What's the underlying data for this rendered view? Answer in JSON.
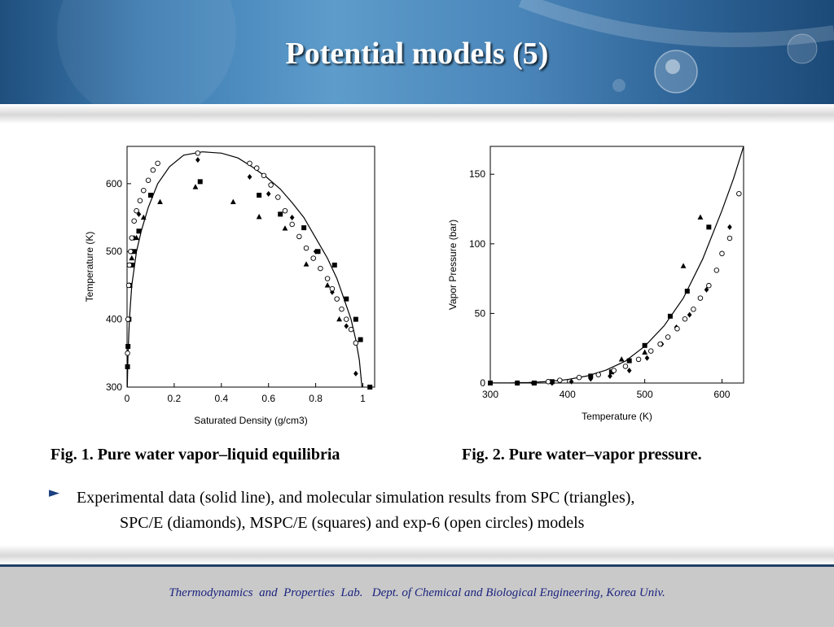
{
  "slide": {
    "title": "Potential models (5)",
    "captions": {
      "fig1": "Fig. 1. Pure water vapor–liquid equilibria",
      "fig2": "Fig. 2. Pure water–vapor pressure."
    },
    "bullet": {
      "line1": "Experimental data (solid line), and molecular simulation results from SPC (triangles),",
      "line2": "SPC/E (diamonds), MSPC/E (squares) and exp-6 (open circles) models"
    },
    "footer": "Thermodynamics  and  Properties  Lab.   Dept. of Chemical and Biological Engineering, Korea Univ."
  },
  "chart_data": [
    {
      "type": "scatter",
      "xlabel": "Saturated Density (g/cm3)",
      "ylabel": "Temperature (K)",
      "xlim": [
        0,
        1.05
      ],
      "ylim": [
        300,
        655
      ],
      "xticks": [
        "0",
        "0.2",
        "0.4",
        "0.6",
        "0.8",
        "1"
      ],
      "xtick_values": [
        0,
        0.2,
        0.4,
        0.6,
        0.8,
        1.0
      ],
      "yticks": [
        "300",
        "400",
        "500",
        "600"
      ],
      "ytick_values": [
        300,
        400,
        500,
        600
      ],
      "grid": false,
      "series": [
        {
          "marker": "line",
          "x": [
            0.001,
            0.004,
            0.01,
            0.02,
            0.04,
            0.06,
            0.09,
            0.13,
            0.18,
            0.24,
            0.32,
            0.4,
            0.47,
            0.53,
            0.59,
            0.65,
            0.7,
            0.75,
            0.8,
            0.85,
            0.89,
            0.92,
            0.95,
            0.97,
            0.985,
            0.996
          ],
          "y": [
            300,
            350,
            400,
            450,
            500,
            530,
            565,
            600,
            625,
            642,
            647,
            645,
            638,
            625,
            610,
            592,
            572,
            550,
            520,
            490,
            460,
            430,
            400,
            370,
            340,
            300
          ]
        },
        {
          "marker": "triangle",
          "x": [
            0.01,
            0.02,
            0.04,
            0.07,
            0.14,
            0.29,
            0.45,
            0.56,
            0.67,
            0.76,
            0.85,
            0.9
          ],
          "y": [
            450,
            490,
            520,
            550,
            573,
            595,
            573,
            551,
            534,
            481,
            450,
            400
          ]
        },
        {
          "marker": "diamond",
          "x": [
            0.005,
            0.01,
            0.02,
            0.03,
            0.05,
            0.3,
            0.52,
            0.6,
            0.7,
            0.8,
            0.87,
            0.93,
            0.97
          ],
          "y": [
            400,
            450,
            500,
            520,
            555,
            635,
            610,
            585,
            550,
            500,
            440,
            390,
            320
          ]
        },
        {
          "marker": "square",
          "x": [
            0.002,
            0.004,
            0.008,
            0.012,
            0.02,
            0.03,
            0.05,
            0.1,
            0.31,
            0.56,
            0.65,
            0.75,
            0.81,
            0.88,
            0.93,
            0.97,
            0.99,
            1.03
          ],
          "y": [
            330,
            360,
            400,
            450,
            480,
            500,
            530,
            583,
            603,
            583,
            555,
            535,
            500,
            480,
            430,
            400,
            370,
            300
          ]
        },
        {
          "marker": "circle",
          "x": [
            0.002,
            0.004,
            0.007,
            0.01,
            0.015,
            0.02,
            0.03,
            0.04,
            0.055,
            0.07,
            0.09,
            0.11,
            0.13,
            0.3,
            0.52,
            0.55,
            0.58,
            0.61,
            0.64,
            0.67,
            0.7,
            0.73,
            0.76,
            0.79,
            0.82,
            0.85,
            0.87,
            0.89,
            0.91,
            0.93,
            0.95,
            0.97
          ],
          "y": [
            350,
            400,
            450,
            480,
            500,
            520,
            545,
            560,
            575,
            590,
            605,
            620,
            630,
            645,
            630,
            623,
            612,
            598,
            580,
            560,
            540,
            522,
            505,
            490,
            475,
            460,
            445,
            430,
            415,
            400,
            385,
            365
          ]
        }
      ]
    },
    {
      "type": "scatter",
      "xlabel": "Temperature (K)",
      "ylabel": "Vapor Pressure (bar)",
      "xlim": [
        300,
        628
      ],
      "ylim": [
        0,
        170
      ],
      "xticks": [
        "300",
        "400",
        "500",
        "600"
      ],
      "xtick_values": [
        300,
        400,
        500,
        600
      ],
      "yticks": [
        "0",
        "50",
        "100",
        "150"
      ],
      "ytick_values": [
        0,
        50,
        100,
        150
      ],
      "grid": false,
      "series": [
        {
          "marker": "line",
          "x": [
            300,
            325,
            350,
            375,
            400,
            425,
            450,
            475,
            500,
            525,
            550,
            575,
            600,
            615,
            628
          ],
          "y": [
            0.04,
            0.14,
            0.42,
            1.1,
            2.5,
            5.0,
            9.3,
            15.8,
            26.4,
            41,
            61,
            89,
            124,
            147,
            170
          ]
        },
        {
          "marker": "triangle",
          "x": [
            470,
            500,
            550,
            572
          ],
          "y": [
            17,
            22,
            84,
            119
          ]
        },
        {
          "marker": "diamond",
          "x": [
            335,
            355,
            380,
            405,
            430,
            455,
            480,
            503,
            522,
            541,
            558,
            580,
            610
          ],
          "y": [
            0,
            0,
            0,
            1,
            3,
            5,
            9,
            18,
            28,
            40,
            49,
            67,
            112
          ]
        },
        {
          "marker": "square",
          "x": [
            300,
            335,
            357,
            380,
            430,
            457,
            480,
            500,
            533,
            555,
            583
          ],
          "y": [
            0,
            0,
            0,
            1,
            5,
            8,
            16,
            27,
            48,
            66,
            112
          ]
        },
        {
          "marker": "circle",
          "x": [
            375,
            390,
            415,
            440,
            460,
            475,
            492,
            508,
            520,
            530,
            542,
            552,
            563,
            572,
            583,
            593,
            600,
            610,
            622
          ],
          "y": [
            1,
            2,
            4,
            6,
            9,
            12,
            17,
            23,
            28,
            33,
            39,
            46,
            53,
            61,
            70,
            81,
            93,
            104,
            136
          ]
        }
      ]
    }
  ]
}
